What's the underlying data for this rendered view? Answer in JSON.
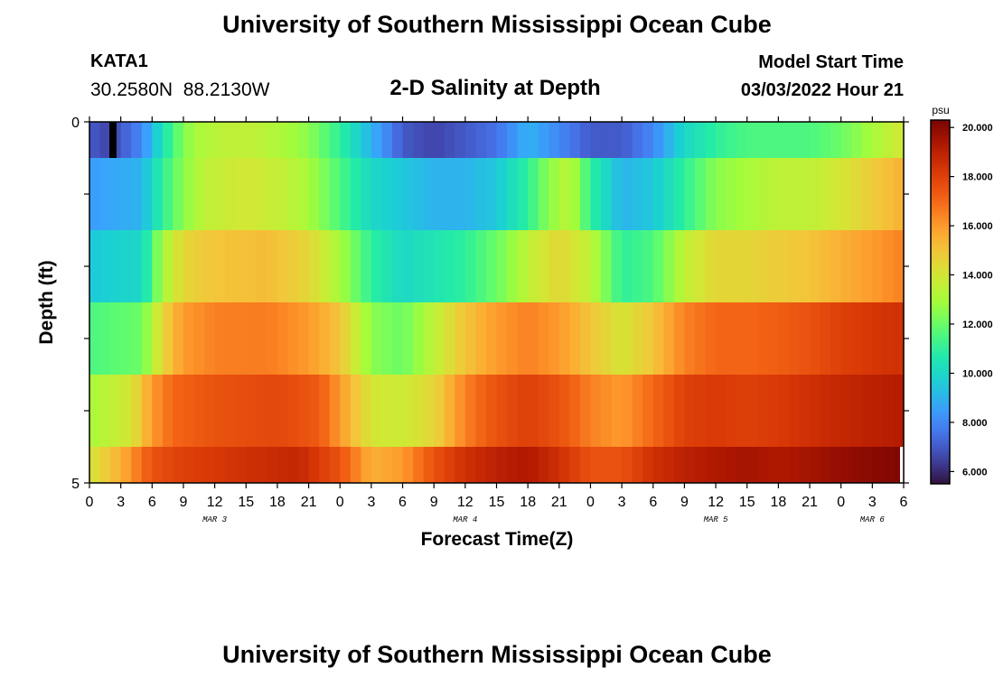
{
  "header": {
    "title": "University of Southern Mississippi Ocean Cube",
    "station_id": "KATA1",
    "station_coords": "30.2580N  88.2130W",
    "subtitle": "2-D Salinity at Depth",
    "model_start_label": "Model Start Time",
    "model_start_value": "03/03/2022 Hour 21"
  },
  "footer": {
    "title": "University of Southern Mississippi Ocean Cube"
  },
  "chart_data": {
    "type": "heatmap",
    "title": "2-D Salinity at Depth",
    "xlabel": "Forecast Time(Z)",
    "ylabel": "Depth (ft)",
    "y_tick_labels": [
      "0",
      "5"
    ],
    "ylim": [
      0,
      5
    ],
    "x_tick_labels": [
      "0",
      "3",
      "6",
      "9",
      "12",
      "15",
      "18",
      "21",
      "0",
      "3",
      "6",
      "9",
      "12",
      "15",
      "18",
      "21",
      "0",
      "3",
      "6",
      "9",
      "12",
      "15",
      "18",
      "21",
      "0",
      "3",
      "6"
    ],
    "x_hours": [
      0,
      3,
      6,
      9,
      12,
      15,
      18,
      21,
      24,
      27,
      30,
      33,
      36,
      39,
      42,
      45,
      48,
      51,
      54,
      57,
      60,
      63,
      66,
      69,
      72,
      75,
      78
    ],
    "xlim": [
      0,
      78
    ],
    "day_labels": [
      {
        "label": "MAR 3",
        "hour": 12
      },
      {
        "label": "MAR 4",
        "hour": 36
      },
      {
        "label": "MAR 5",
        "hour": 60
      },
      {
        "label": "MAR 6",
        "hour": 75
      }
    ],
    "colorbar": {
      "unit": "psu",
      "min": 5.5,
      "max": 20.3,
      "tick_labels": [
        "20.000",
        "18.000",
        "16.000",
        "14.000",
        "12.000",
        "10.000",
        "8.000",
        "6.000"
      ],
      "tick_values": [
        20,
        18,
        16,
        14,
        12,
        10,
        8,
        6
      ]
    },
    "layers": [
      {
        "depth_range": "0-0.5",
        "keyframes": [
          [
            0,
            7
          ],
          [
            2,
            6.5
          ],
          [
            5,
            8
          ],
          [
            8,
            11.5
          ],
          [
            10,
            13
          ],
          [
            13,
            13.5
          ],
          [
            16,
            13.5
          ],
          [
            19,
            13
          ],
          [
            21,
            12.5
          ],
          [
            24,
            11
          ],
          [
            27,
            9
          ],
          [
            30,
            7
          ],
          [
            33,
            6.5
          ],
          [
            36,
            7
          ],
          [
            39,
            7.5
          ],
          [
            42,
            9
          ],
          [
            45,
            8
          ],
          [
            48,
            7
          ],
          [
            51,
            7
          ],
          [
            54,
            8
          ],
          [
            57,
            10
          ],
          [
            60,
            11
          ],
          [
            63,
            11.5
          ],
          [
            66,
            11.5
          ],
          [
            69,
            11.5
          ],
          [
            72,
            12
          ],
          [
            75,
            13
          ],
          [
            78,
            14
          ]
        ]
      },
      {
        "depth_range": "0.5-1.5",
        "keyframes": [
          [
            0,
            8.5
          ],
          [
            5,
            9
          ],
          [
            7,
            11
          ],
          [
            9,
            12.5
          ],
          [
            11,
            13.5
          ],
          [
            15,
            14
          ],
          [
            19,
            13.5
          ],
          [
            21,
            13
          ],
          [
            24,
            11.5
          ],
          [
            27,
            10
          ],
          [
            30,
            9.5
          ],
          [
            33,
            9
          ],
          [
            36,
            9
          ],
          [
            39,
            9.5
          ],
          [
            42,
            11
          ],
          [
            44,
            12.5
          ],
          [
            46,
            13.5
          ],
          [
            48,
            11
          ],
          [
            51,
            9
          ],
          [
            54,
            9.5
          ],
          [
            57,
            11
          ],
          [
            60,
            12.5
          ],
          [
            63,
            13
          ],
          [
            66,
            13.5
          ],
          [
            69,
            13.5
          ],
          [
            72,
            14
          ],
          [
            75,
            14.8
          ],
          [
            78,
            15.5
          ]
        ]
      },
      {
        "depth_range": "1.5-2.5",
        "keyframes": [
          [
            0,
            9.5
          ],
          [
            5,
            10
          ],
          [
            7,
            13
          ],
          [
            9,
            14.5
          ],
          [
            12,
            15
          ],
          [
            17,
            15.2
          ],
          [
            21,
            14.5
          ],
          [
            24,
            13
          ],
          [
            27,
            11
          ],
          [
            30,
            10
          ],
          [
            33,
            10.5
          ],
          [
            36,
            11
          ],
          [
            39,
            12
          ],
          [
            42,
            13.5
          ],
          [
            45,
            14.5
          ],
          [
            48,
            13.5
          ],
          [
            51,
            11
          ],
          [
            54,
            11.5
          ],
          [
            57,
            13.5
          ],
          [
            60,
            14.5
          ],
          [
            63,
            14.5
          ],
          [
            66,
            14.8
          ],
          [
            69,
            15
          ],
          [
            72,
            15.5
          ],
          [
            75,
            16
          ],
          [
            78,
            16.5
          ]
        ]
      },
      {
        "depth_range": "2.5-3.5",
        "keyframes": [
          [
            0,
            11.5
          ],
          [
            5,
            12
          ],
          [
            7,
            14.5
          ],
          [
            9,
            16
          ],
          [
            12,
            16.5
          ],
          [
            17,
            16.6
          ],
          [
            21,
            16
          ],
          [
            24,
            15
          ],
          [
            27,
            12.5
          ],
          [
            30,
            12
          ],
          [
            33,
            13.5
          ],
          [
            36,
            15
          ],
          [
            39,
            16
          ],
          [
            42,
            16.5
          ],
          [
            45,
            16
          ],
          [
            48,
            15
          ],
          [
            51,
            14
          ],
          [
            54,
            15
          ],
          [
            57,
            16.5
          ],
          [
            60,
            17
          ],
          [
            63,
            17
          ],
          [
            66,
            17.2
          ],
          [
            69,
            17.5
          ],
          [
            72,
            18
          ],
          [
            75,
            18.3
          ],
          [
            78,
            18.5
          ]
        ]
      },
      {
        "depth_range": "3.5-4.5",
        "keyframes": [
          [
            0,
            13
          ],
          [
            4,
            14
          ],
          [
            6,
            16
          ],
          [
            8,
            17
          ],
          [
            12,
            17.5
          ],
          [
            18,
            17.8
          ],
          [
            22,
            17.3
          ],
          [
            24,
            16
          ],
          [
            27,
            14
          ],
          [
            30,
            13.8
          ],
          [
            33,
            14.5
          ],
          [
            36,
            16.5
          ],
          [
            39,
            17.5
          ],
          [
            42,
            18
          ],
          [
            45,
            17.5
          ],
          [
            48,
            16.5
          ],
          [
            51,
            16
          ],
          [
            54,
            17
          ],
          [
            57,
            18
          ],
          [
            60,
            18.2
          ],
          [
            63,
            18
          ],
          [
            66,
            18.2
          ],
          [
            69,
            18.5
          ],
          [
            72,
            18.8
          ],
          [
            75,
            19
          ],
          [
            78,
            19.2
          ]
        ]
      },
      {
        "depth_range": "4.5-5",
        "keyframes": [
          [
            0,
            14
          ],
          [
            3,
            15.5
          ],
          [
            6,
            17.5
          ],
          [
            9,
            18
          ],
          [
            15,
            18.5
          ],
          [
            20,
            18.8
          ],
          [
            24,
            17.5
          ],
          [
            27,
            15.5
          ],
          [
            30,
            16
          ],
          [
            33,
            17.5
          ],
          [
            36,
            18.5
          ],
          [
            39,
            19
          ],
          [
            42,
            19.3
          ],
          [
            45,
            18.5
          ],
          [
            48,
            17.5
          ],
          [
            51,
            17.5
          ],
          [
            54,
            18.5
          ],
          [
            57,
            19
          ],
          [
            60,
            19.3
          ],
          [
            63,
            19.5
          ],
          [
            66,
            19.3
          ],
          [
            69,
            19.5
          ],
          [
            72,
            19.8
          ],
          [
            75,
            20
          ],
          [
            78,
            20.2
          ]
        ]
      }
    ],
    "grid": false
  }
}
